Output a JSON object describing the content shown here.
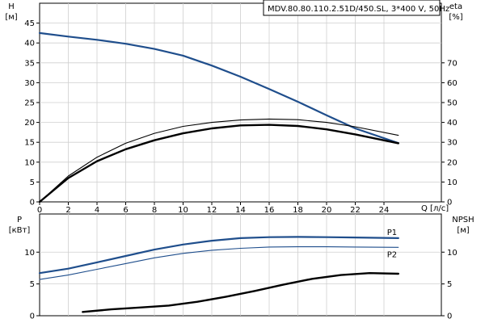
{
  "chart_data": [
    {
      "type": "line",
      "title": "MDV.80.80.110.2.51D/450.SL, 3*400 V, 50Hz",
      "xlabel": "Q [л/с]",
      "xlim": [
        0,
        28
      ],
      "x_ticks": [
        0,
        2,
        4,
        6,
        8,
        10,
        12,
        14,
        16,
        18,
        20,
        22,
        24
      ],
      "ylabel_left": [
        "H",
        "[м]"
      ],
      "ylim_left": [
        0,
        50
      ],
      "y_ticks_left": [
        0,
        5,
        10,
        15,
        20,
        25,
        30,
        35,
        40,
        45
      ],
      "ylabel_right": [
        "eta",
        "[%]"
      ],
      "ylim_right": [
        0,
        100
      ],
      "y_ticks_right": [
        0,
        10,
        20,
        30,
        40,
        50,
        60,
        70
      ],
      "grid": true,
      "series": [
        {
          "axis": "left",
          "color": "#1f4e8c",
          "x": [
            0,
            2,
            4,
            6,
            8,
            10,
            12,
            14,
            16,
            18,
            20,
            22,
            25
          ],
          "values": [
            42.5,
            41.6,
            40.8,
            39.8,
            38.5,
            36.8,
            34.3,
            31.5,
            28.4,
            25.2,
            21.8,
            18.5,
            14.8
          ]
        },
        {
          "axis": "right",
          "color": "#000000",
          "x": [
            0,
            2,
            4,
            6,
            8,
            10,
            12,
            14,
            16,
            18,
            20,
            22,
            25
          ],
          "values": [
            0,
            12,
            20.5,
            26.5,
            31,
            34.5,
            37,
            38.5,
            38.8,
            38.2,
            36.5,
            34,
            29.5
          ]
        },
        {
          "axis": "right",
          "color": "#000000",
          "x": [
            0,
            2,
            4,
            6,
            8,
            10,
            12,
            14,
            16,
            18,
            20,
            22,
            25
          ],
          "values": [
            0,
            13,
            22.5,
            29.5,
            34.5,
            38,
            40,
            41.2,
            41.7,
            41.4,
            40,
            37.8,
            33.5
          ]
        }
      ]
    },
    {
      "type": "line",
      "xlim": [
        0,
        28
      ],
      "ylabel_left": [
        "P",
        "[кВт]"
      ],
      "ylim_left": [
        0,
        16
      ],
      "y_ticks_left": [
        0,
        5,
        10
      ],
      "ylabel_right": [
        "NPSH",
        "[м]"
      ],
      "ylim_right": [
        0,
        16
      ],
      "y_ticks_right": [
        0,
        5,
        10
      ],
      "grid": true,
      "series": [
        {
          "name": "P1",
          "axis": "left",
          "color": "#1f4e8c",
          "x": [
            0,
            2,
            4,
            6,
            8,
            10,
            12,
            14,
            16,
            18,
            20,
            22,
            25
          ],
          "values": [
            6.7,
            7.4,
            8.4,
            9.4,
            10.4,
            11.2,
            11.8,
            12.2,
            12.35,
            12.4,
            12.35,
            12.3,
            12.2
          ]
        },
        {
          "name": "P2",
          "axis": "left",
          "color": "#1f4e8c",
          "x": [
            0,
            2,
            4,
            6,
            8,
            10,
            12,
            14,
            16,
            18,
            20,
            22,
            25
          ],
          "values": [
            5.7,
            6.4,
            7.3,
            8.2,
            9.1,
            9.8,
            10.3,
            10.6,
            10.8,
            10.85,
            10.85,
            10.8,
            10.75
          ]
        },
        {
          "axis": "right",
          "color": "#000000",
          "x": [
            3,
            5,
            7,
            9,
            11,
            13,
            15,
            17,
            19,
            21,
            23,
            25
          ],
          "values": [
            0.6,
            1.0,
            1.3,
            1.6,
            2.2,
            3.0,
            3.9,
            4.9,
            5.8,
            6.4,
            6.7,
            6.6
          ]
        }
      ]
    }
  ]
}
